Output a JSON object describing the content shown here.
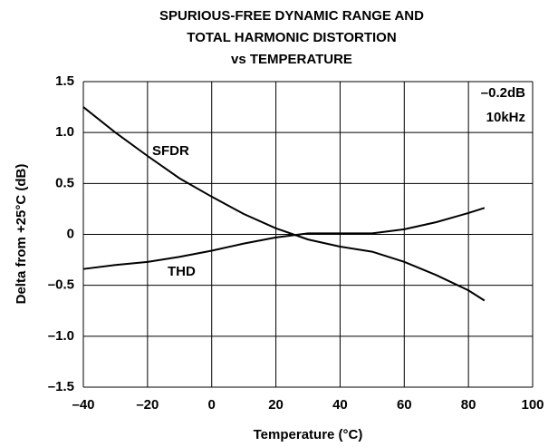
{
  "chart_data": {
    "type": "line",
    "title": [
      "SPURIOUS-FREE DYNAMIC RANGE AND",
      "TOTAL HARMONIC DISTORTION",
      "vs TEMPERATURE"
    ],
    "x_label": "Temperature (°C)",
    "y_label": "Delta from +25°C (dB)",
    "x": [
      -40,
      -30,
      -20,
      -10,
      0,
      10,
      20,
      30,
      40,
      50,
      60,
      70,
      80,
      85
    ],
    "series": [
      {
        "name": "SFDR",
        "color": "#000000",
        "values": [
          1.25,
          1.0,
          0.77,
          0.55,
          0.37,
          0.2,
          0.06,
          -0.05,
          -0.12,
          -0.17,
          -0.27,
          -0.4,
          -0.55,
          -0.65
        ]
      },
      {
        "name": "THD",
        "color": "#000000",
        "values": [
          -0.34,
          -0.3,
          -0.27,
          -0.22,
          -0.16,
          -0.09,
          -0.03,
          0.01,
          0.01,
          0.01,
          0.05,
          0.12,
          0.21,
          0.26
        ]
      }
    ],
    "annotations": [
      "–0.2dB",
      "10kHz"
    ],
    "xlim": [
      -40,
      100
    ],
    "xticks": [
      {
        "value": -40,
        "label": "–40"
      },
      {
        "value": -20,
        "label": "–20"
      },
      0,
      20,
      40,
      60,
      80,
      100
    ],
    "ylim": [
      -1.5,
      1.5
    ],
    "yticks": [
      {
        "value": -1.5,
        "label": "–1.5"
      },
      {
        "value": -1,
        "label": "–1.0"
      },
      {
        "value": -0.5,
        "label": "–0.5"
      },
      0,
      0.5,
      {
        "value": 1,
        "label": "1.0"
      },
      1.5
    ],
    "grid": true
  }
}
